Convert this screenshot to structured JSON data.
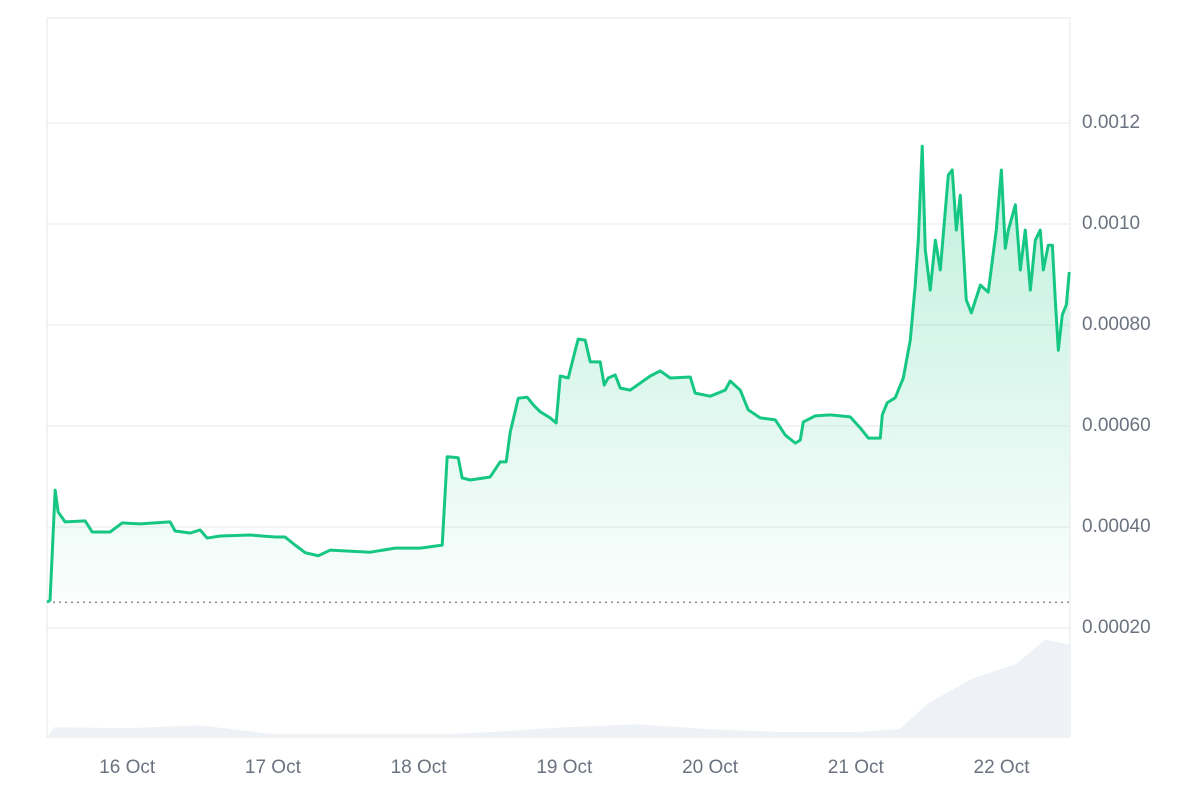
{
  "chart_data": {
    "type": "line",
    "x": [
      15.451,
      15.471,
      15.506,
      15.526,
      15.574,
      15.712,
      15.76,
      15.883,
      15.966,
      16.089,
      16.295,
      16.329,
      16.432,
      16.501,
      16.549,
      16.638,
      16.844,
      17.016,
      17.084,
      17.153,
      17.222,
      17.311,
      17.393,
      17.668,
      17.839,
      18.011,
      18.162,
      18.196,
      18.272,
      18.299,
      18.354,
      18.491,
      18.56,
      18.601,
      18.629,
      18.684,
      18.745,
      18.787,
      18.835,
      18.903,
      18.944,
      18.972,
      19.027,
      19.075,
      19.095,
      19.143,
      19.178,
      19.246,
      19.274,
      19.301,
      19.349,
      19.384,
      19.452,
      19.59,
      19.658,
      19.727,
      19.864,
      19.898,
      20.001,
      20.104,
      20.138,
      20.207,
      20.262,
      20.344,
      20.448,
      20.516,
      20.585,
      20.619,
      20.64,
      20.722,
      20.825,
      20.962,
      21.031,
      21.086,
      21.168,
      21.182,
      21.216,
      21.271,
      21.326,
      21.374,
      21.408,
      21.429,
      21.456,
      21.477,
      21.511,
      21.546,
      21.58,
      21.635,
      21.662,
      21.69,
      21.717,
      21.758,
      21.793,
      21.855,
      21.909,
      21.964,
      21.999,
      22.026,
      22.047,
      22.095,
      22.129,
      22.163,
      22.198,
      22.232,
      22.266,
      22.287,
      22.321,
      22.349,
      22.369,
      22.39,
      22.417,
      22.445,
      22.465
    ],
    "series": [
      {
        "color": "#16c784",
        "values": [
          0.000251,
          0.000255,
          0.000473,
          0.00043,
          0.00041,
          0.000412,
          0.00039,
          0.00039,
          0.000408,
          0.000406,
          0.00041,
          0.000392,
          0.000388,
          0.000394,
          0.000378,
          0.000382,
          0.000384,
          0.00038,
          0.00038,
          0.000364,
          0.000349,
          0.000343,
          0.000354,
          0.00035,
          0.000358,
          0.000358,
          0.000364,
          0.000539,
          0.000537,
          0.000497,
          0.000493,
          0.000499,
          0.000529,
          0.000529,
          0.000588,
          0.000655,
          0.000657,
          0.000642,
          0.000628,
          0.000616,
          0.000606,
          0.000699,
          0.000695,
          0.00075,
          0.000772,
          0.00077,
          0.000727,
          0.000727,
          0.000681,
          0.000695,
          0.000701,
          0.000675,
          0.000671,
          0.000699,
          0.000709,
          0.000695,
          0.000697,
          0.000665,
          0.000659,
          0.000671,
          0.000689,
          0.000671,
          0.000632,
          0.000616,
          0.000612,
          0.000582,
          0.000566,
          0.000572,
          0.000608,
          0.00062,
          0.000622,
          0.000618,
          0.000596,
          0.000576,
          0.000576,
          0.000622,
          0.000646,
          0.000656,
          0.000695,
          0.00077,
          0.000879,
          0.000968,
          0.001154,
          0.000949,
          0.000869,
          0.000968,
          0.000909,
          0.001097,
          0.001107,
          0.000988,
          0.001057,
          0.00085,
          0.000824,
          0.000879,
          0.000865,
          0.000988,
          0.001107,
          0.000952,
          0.000988,
          0.001038,
          0.000909,
          0.000988,
          0.000869,
          0.000968,
          0.000988,
          0.000909,
          0.000958,
          0.000958,
          0.00085,
          0.00075,
          0.00082,
          0.00084,
          0.000905
        ]
      }
    ],
    "volume": {
      "color": "#eef1f5",
      "x": [
        15.451,
        15.5,
        16.0,
        16.5,
        17.0,
        17.5,
        18.2,
        18.5,
        19.0,
        19.5,
        20.0,
        20.5,
        21.0,
        21.3,
        21.5,
        21.8,
        22.1,
        22.3,
        22.47
      ],
      "values": [
        0,
        10,
        9,
        12,
        3,
        3,
        3,
        5,
        10,
        13,
        8,
        5,
        5,
        8,
        35,
        60,
        75,
        100,
        95
      ],
      "ylim": [
        0,
        110
      ]
    },
    "xlim": [
      15.45,
      22.47
    ],
    "ylim": [
      -1.6e-05,
      0.001408
    ],
    "xticks": [
      {
        "value": 16,
        "label": "16 Oct"
      },
      {
        "value": 17,
        "label": "17 Oct"
      },
      {
        "value": 18,
        "label": "18 Oct"
      },
      {
        "value": 19,
        "label": "19 Oct"
      },
      {
        "value": 20,
        "label": "20 Oct"
      },
      {
        "value": 21,
        "label": "21 Oct"
      },
      {
        "value": 22,
        "label": "22 Oct"
      }
    ],
    "yticks": [
      {
        "value": 0.0002,
        "label": "0.00020"
      },
      {
        "value": 0.0004,
        "label": "0.00040"
      },
      {
        "value": 0.0006,
        "label": "0.00060"
      },
      {
        "value": 0.0008,
        "label": "0.00080"
      },
      {
        "value": 0.001,
        "label": "0.0010"
      },
      0.0012
    ],
    "grid": true
  }
}
